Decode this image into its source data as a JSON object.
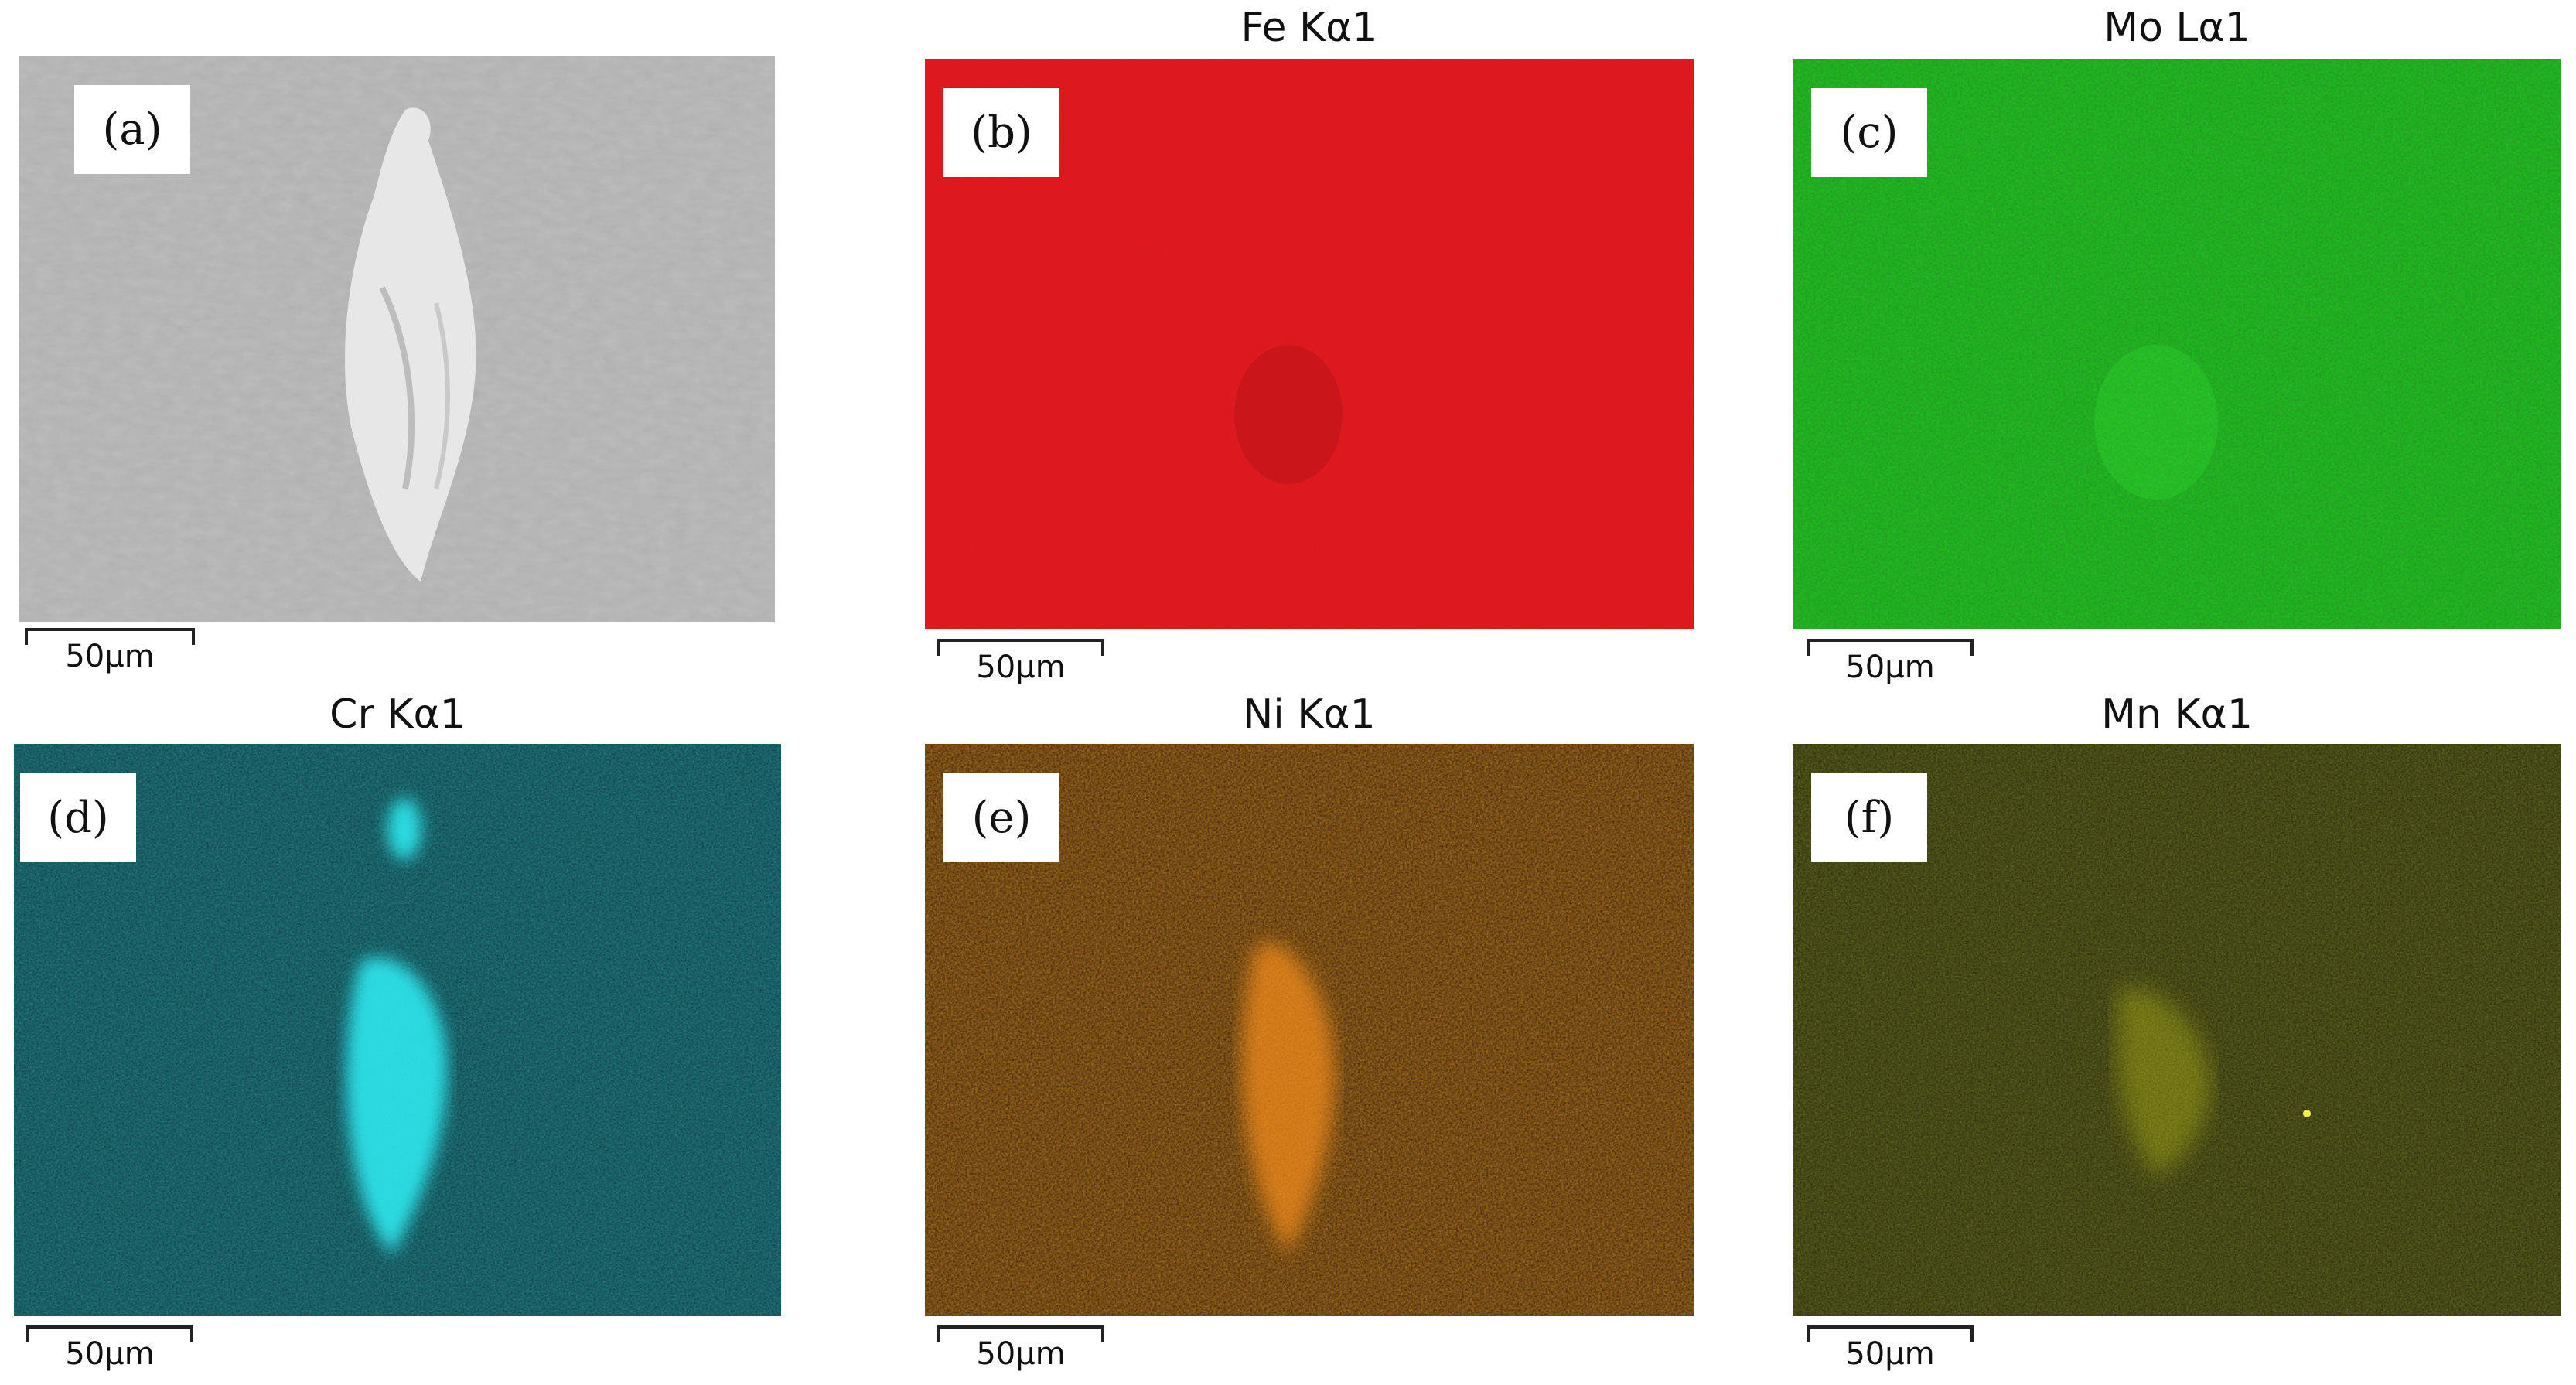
{
  "figure": {
    "panels": [
      {
        "letter": "(a)",
        "title": "",
        "scale_label": "50μm",
        "base_color": "#a8a8a8",
        "accent_color": "#f2f2f2",
        "kind": "sem"
      },
      {
        "letter": "(b)",
        "title": "Fe Kα1",
        "scale_label": "50μm",
        "base_color": "#e0161b",
        "accent_color": "#a81014",
        "kind": "map"
      },
      {
        "letter": "(c)",
        "title": "Mo Lα1",
        "scale_label": "50μm",
        "base_color": "#1fbf1f",
        "accent_color": "#39e639",
        "kind": "map"
      },
      {
        "letter": "(d)",
        "title": "Cr Kα1",
        "scale_label": "50μm",
        "base_color": "#0b4a50",
        "accent_color": "#2fe6ee",
        "kind": "map"
      },
      {
        "letter": "(e)",
        "title": "Ni Kα1",
        "scale_label": "50μm",
        "base_color": "#6a3408",
        "accent_color": "#f08a1a",
        "kind": "map"
      },
      {
        "letter": "(f)",
        "title": "Mn Kα1",
        "scale_label": "50μm",
        "base_color": "#2c3008",
        "accent_color": "#c8c818",
        "kind": "map"
      }
    ]
  }
}
